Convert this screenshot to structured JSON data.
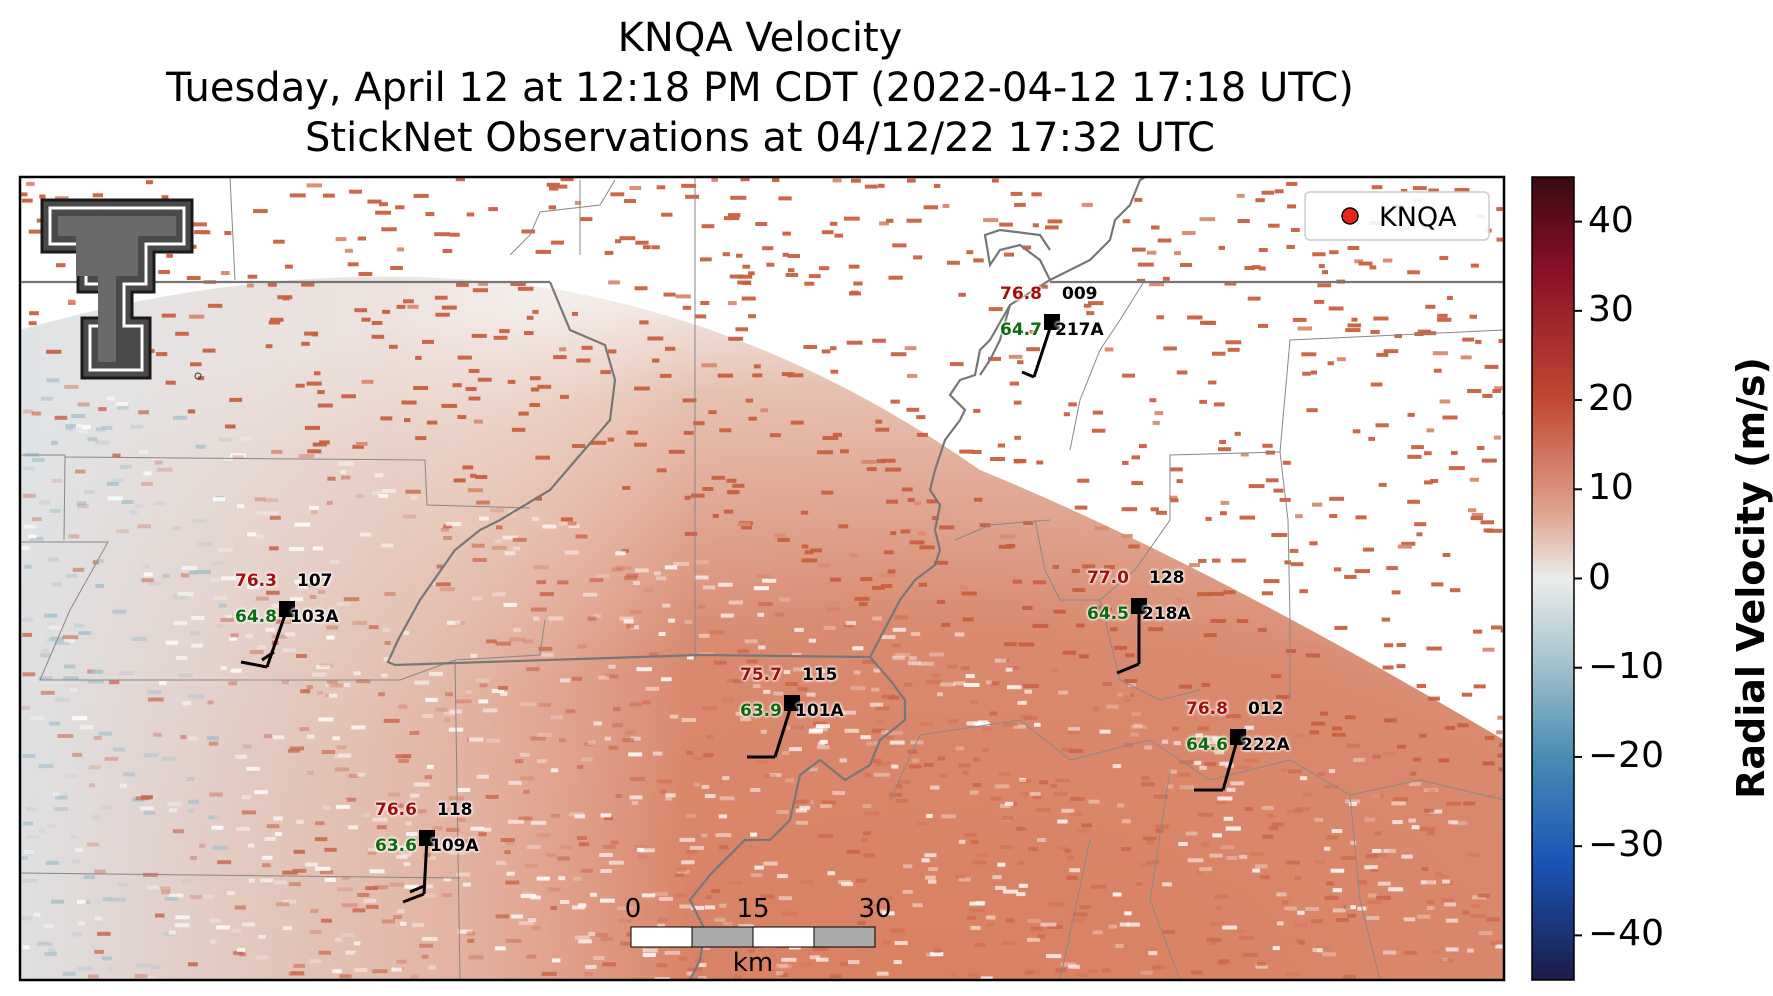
{
  "title": {
    "line1": "KNQA Velocity",
    "line2": "Tuesday, April 12 at 12:18 PM CDT (2022-04-12 17:18 UTC)",
    "line3": "StickNet Observations at 04/12/22 17:32 UTC"
  },
  "legend": {
    "label": "KNQA",
    "marker_color": "#e8231c"
  },
  "colorbar": {
    "label": "Radial Velocity (m/s)",
    "ticks": [
      "40",
      "30",
      "20",
      "10",
      "0",
      "−10",
      "−20",
      "−30",
      "−40"
    ],
    "range": [
      -45,
      45
    ]
  },
  "scalebar": {
    "labels": [
      "0",
      "15",
      "30"
    ],
    "unit": "km"
  },
  "stations": [
    {
      "temp": "76.8",
      "dew": "64.7",
      "id_top": "009",
      "id_bot": "217A"
    },
    {
      "temp": "76.3",
      "dew": "64.8",
      "id_top": "107",
      "id_bot": "103A"
    },
    {
      "temp": "77.0",
      "dew": "64.5",
      "id_top": "128",
      "id_bot": "218A"
    },
    {
      "temp": "75.7",
      "dew": "63.9",
      "id_top": "115",
      "id_bot": "101A"
    },
    {
      "temp": "76.8",
      "dew": "64.6",
      "id_top": "012",
      "id_bot": "222A"
    },
    {
      "temp": "76.6",
      "dew": "63.6",
      "id_top": "118",
      "id_bot": "109A"
    }
  ],
  "colors": {
    "temp": "#a60d0d",
    "dew": "#0c6b0c",
    "velocity_positive": "#c9654a"
  }
}
